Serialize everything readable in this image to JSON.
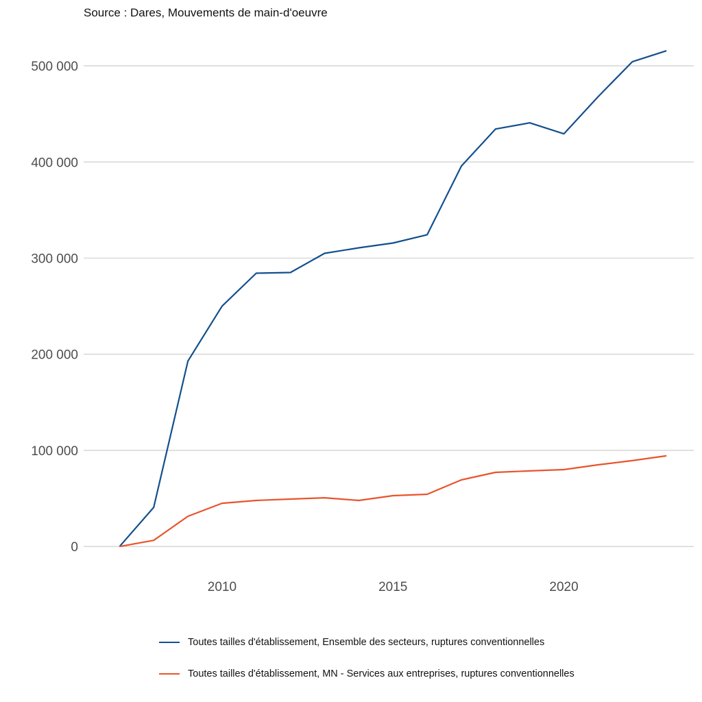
{
  "caption": "Source : Dares, Mouvements de main-d'oeuvre",
  "chart_data": {
    "type": "line",
    "title": "",
    "xlabel": "",
    "ylabel": "",
    "x": [
      2007,
      2008,
      2009,
      2010,
      2011,
      2012,
      2013,
      2014,
      2015,
      2016,
      2017,
      2018,
      2019,
      2020,
      2021,
      2022,
      2023
    ],
    "xlim": [
      2005.95,
      2023.8
    ],
    "ylim": [
      -22000,
      540000
    ],
    "xticks": [
      2010,
      2015,
      2020
    ],
    "xtick_labels": [
      "2010",
      "2015",
      "2020"
    ],
    "yticks": [
      0,
      100000,
      200000,
      300000,
      400000,
      500000
    ],
    "ytick_labels": [
      "0",
      "100 000",
      "200 000",
      "300 000",
      "400 000",
      "500 000"
    ],
    "grid": "horizontal",
    "legend_position": "bottom",
    "series": [
      {
        "name": "Toutes tailles d'établissement, Ensemble des secteurs, ruptures conventionnelles",
        "color": "#124f8c",
        "values": [
          0,
          40700,
          192900,
          250000,
          284300,
          285000,
          305000,
          310700,
          315700,
          324300,
          395700,
          434300,
          440700,
          429300,
          467900,
          504300,
          515700
        ]
      },
      {
        "name": "Toutes tailles d'établissement, MN - Services aux entreprises, ruptures conventionnelles",
        "color": "#e9532b",
        "values": [
          0,
          6400,
          31400,
          45000,
          47900,
          49300,
          50700,
          47900,
          52900,
          54300,
          69300,
          77100,
          78600,
          80000,
          85000,
          89300,
          94300
        ]
      }
    ]
  }
}
